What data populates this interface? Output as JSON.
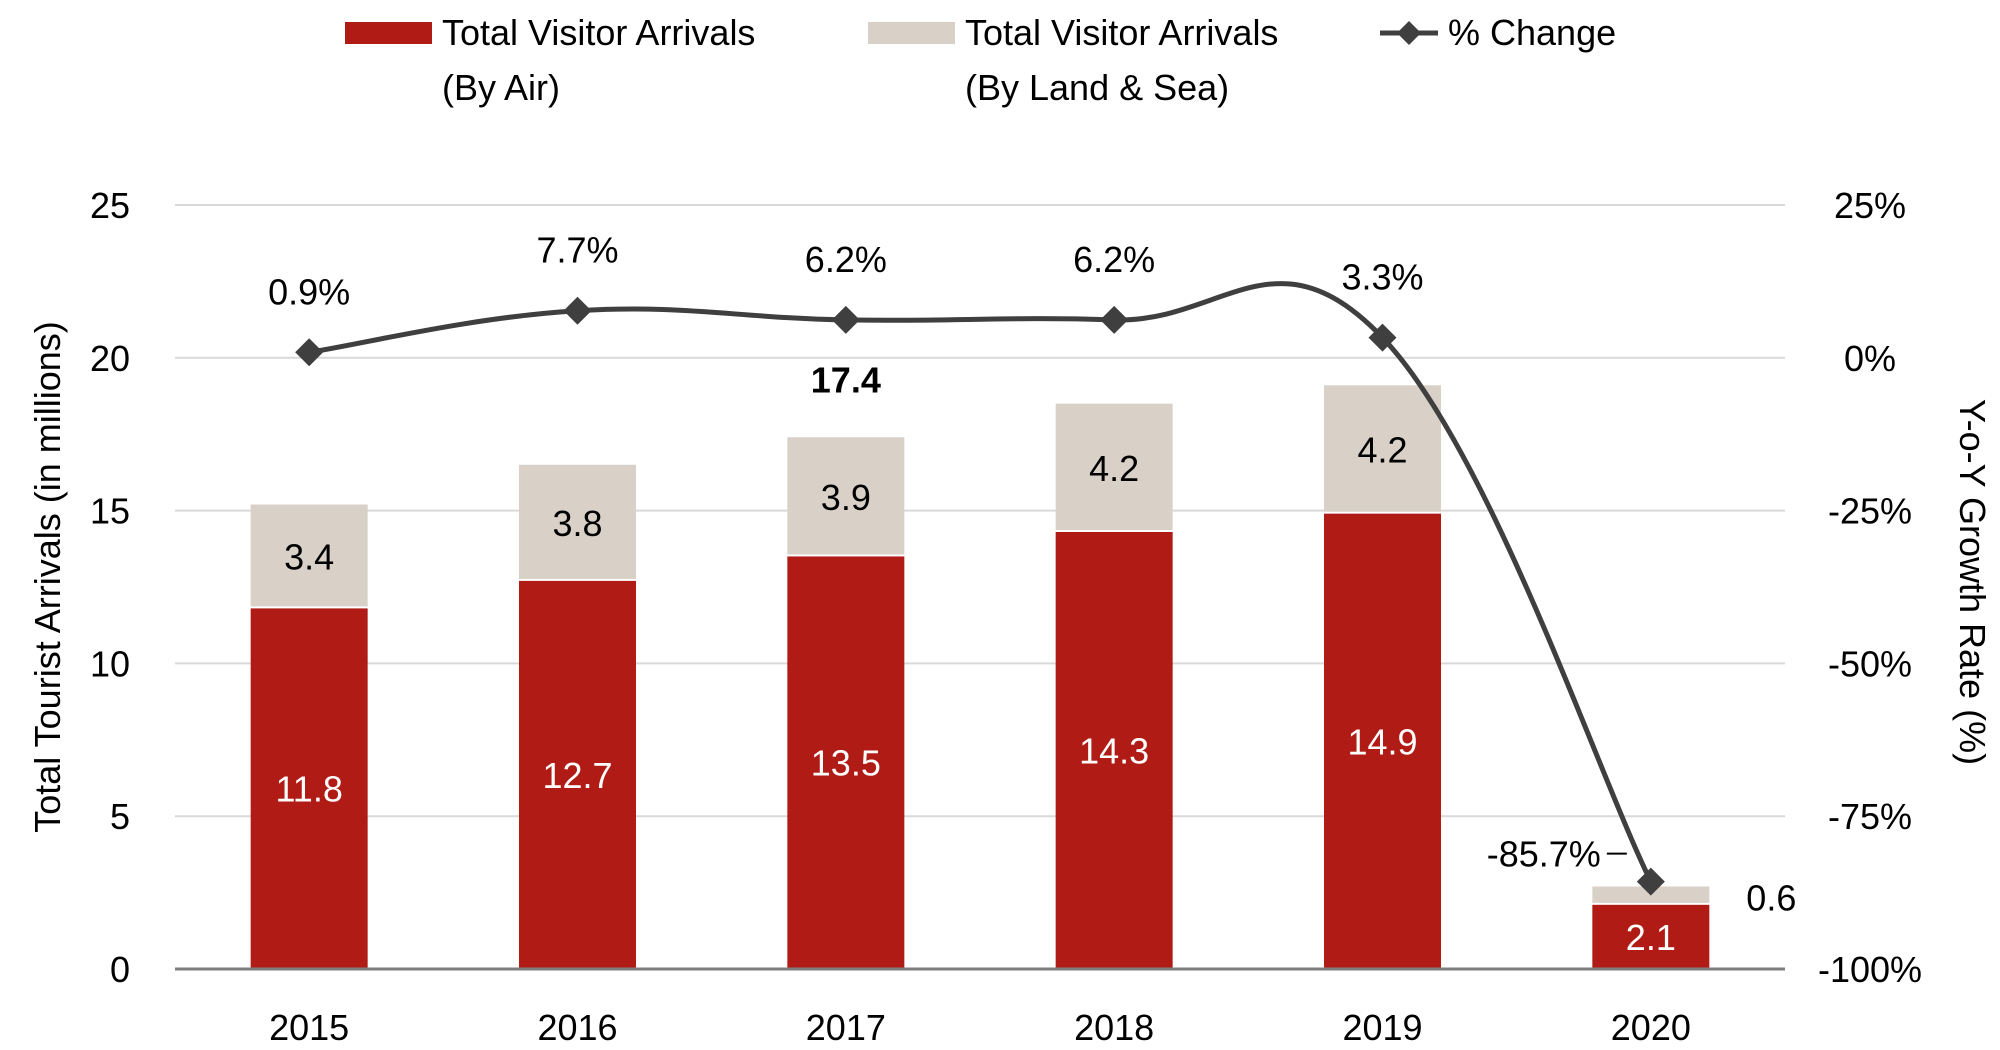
{
  "chart_data": {
    "type": "bar",
    "stacked": true,
    "categories": [
      "2015",
      "2016",
      "2017",
      "2018",
      "2019",
      "2020"
    ],
    "series": [
      {
        "name": "Total Visitor Arrivals (By Air)",
        "values": [
          11.8,
          12.7,
          13.5,
          14.3,
          14.9,
          2.1
        ],
        "color": "#b01c15",
        "axis": "left"
      },
      {
        "name": "Total Visitor Arrivals (By Land & Sea)",
        "values": [
          3.4,
          3.8,
          3.9,
          4.2,
          4.2,
          0.6
        ],
        "color": "#d9d0c7",
        "axis": "left"
      },
      {
        "name": "% Change",
        "type": "line",
        "values": [
          0.9,
          7.7,
          6.2,
          6.2,
          3.3,
          -85.7
        ],
        "color": "#3f3f3f",
        "marker": "diamond",
        "axis": "right",
        "smooth": true
      }
    ],
    "bar_labels": {
      "air": [
        "11.8",
        "12.7",
        "13.5",
        "14.3",
        "14.9",
        "2.1"
      ],
      "land_sea": [
        "3.4",
        "3.8",
        "3.9",
        "4.2",
        "4.2",
        "0.6"
      ]
    },
    "line_labels": [
      "0.9%",
      "7.7%",
      "6.2%",
      "6.2%",
      "3.3%",
      "-85.7%"
    ],
    "annotation_total": {
      "category": "2017",
      "text": "17.4"
    },
    "ylabel": "Total Tourist Arrivals (in millions)",
    "y2label": "Y-o-Y Growth Rate (%)",
    "ylim": [
      0,
      25
    ],
    "y2lim": [
      -100,
      25
    ],
    "yticks": [
      "0",
      "5",
      "10",
      "15",
      "20",
      "25"
    ],
    "y2ticks": [
      "-100%",
      "-75%",
      "-50%",
      "-25%",
      "0%",
      "25%"
    ],
    "grid": true,
    "legend_position": "top",
    "legend": [
      {
        "line1": "Total Visitor Arrivals",
        "line2": "(By Air)",
        "symbol": "rect",
        "color": "#b01c15"
      },
      {
        "line1": "Total Visitor Arrivals",
        "line2": "(By Land & Sea)",
        "symbol": "rect",
        "color": "#d9d0c7"
      },
      {
        "line1": "% Change",
        "line2": "",
        "symbol": "line-diamond",
        "color": "#3f3f3f"
      }
    ]
  }
}
